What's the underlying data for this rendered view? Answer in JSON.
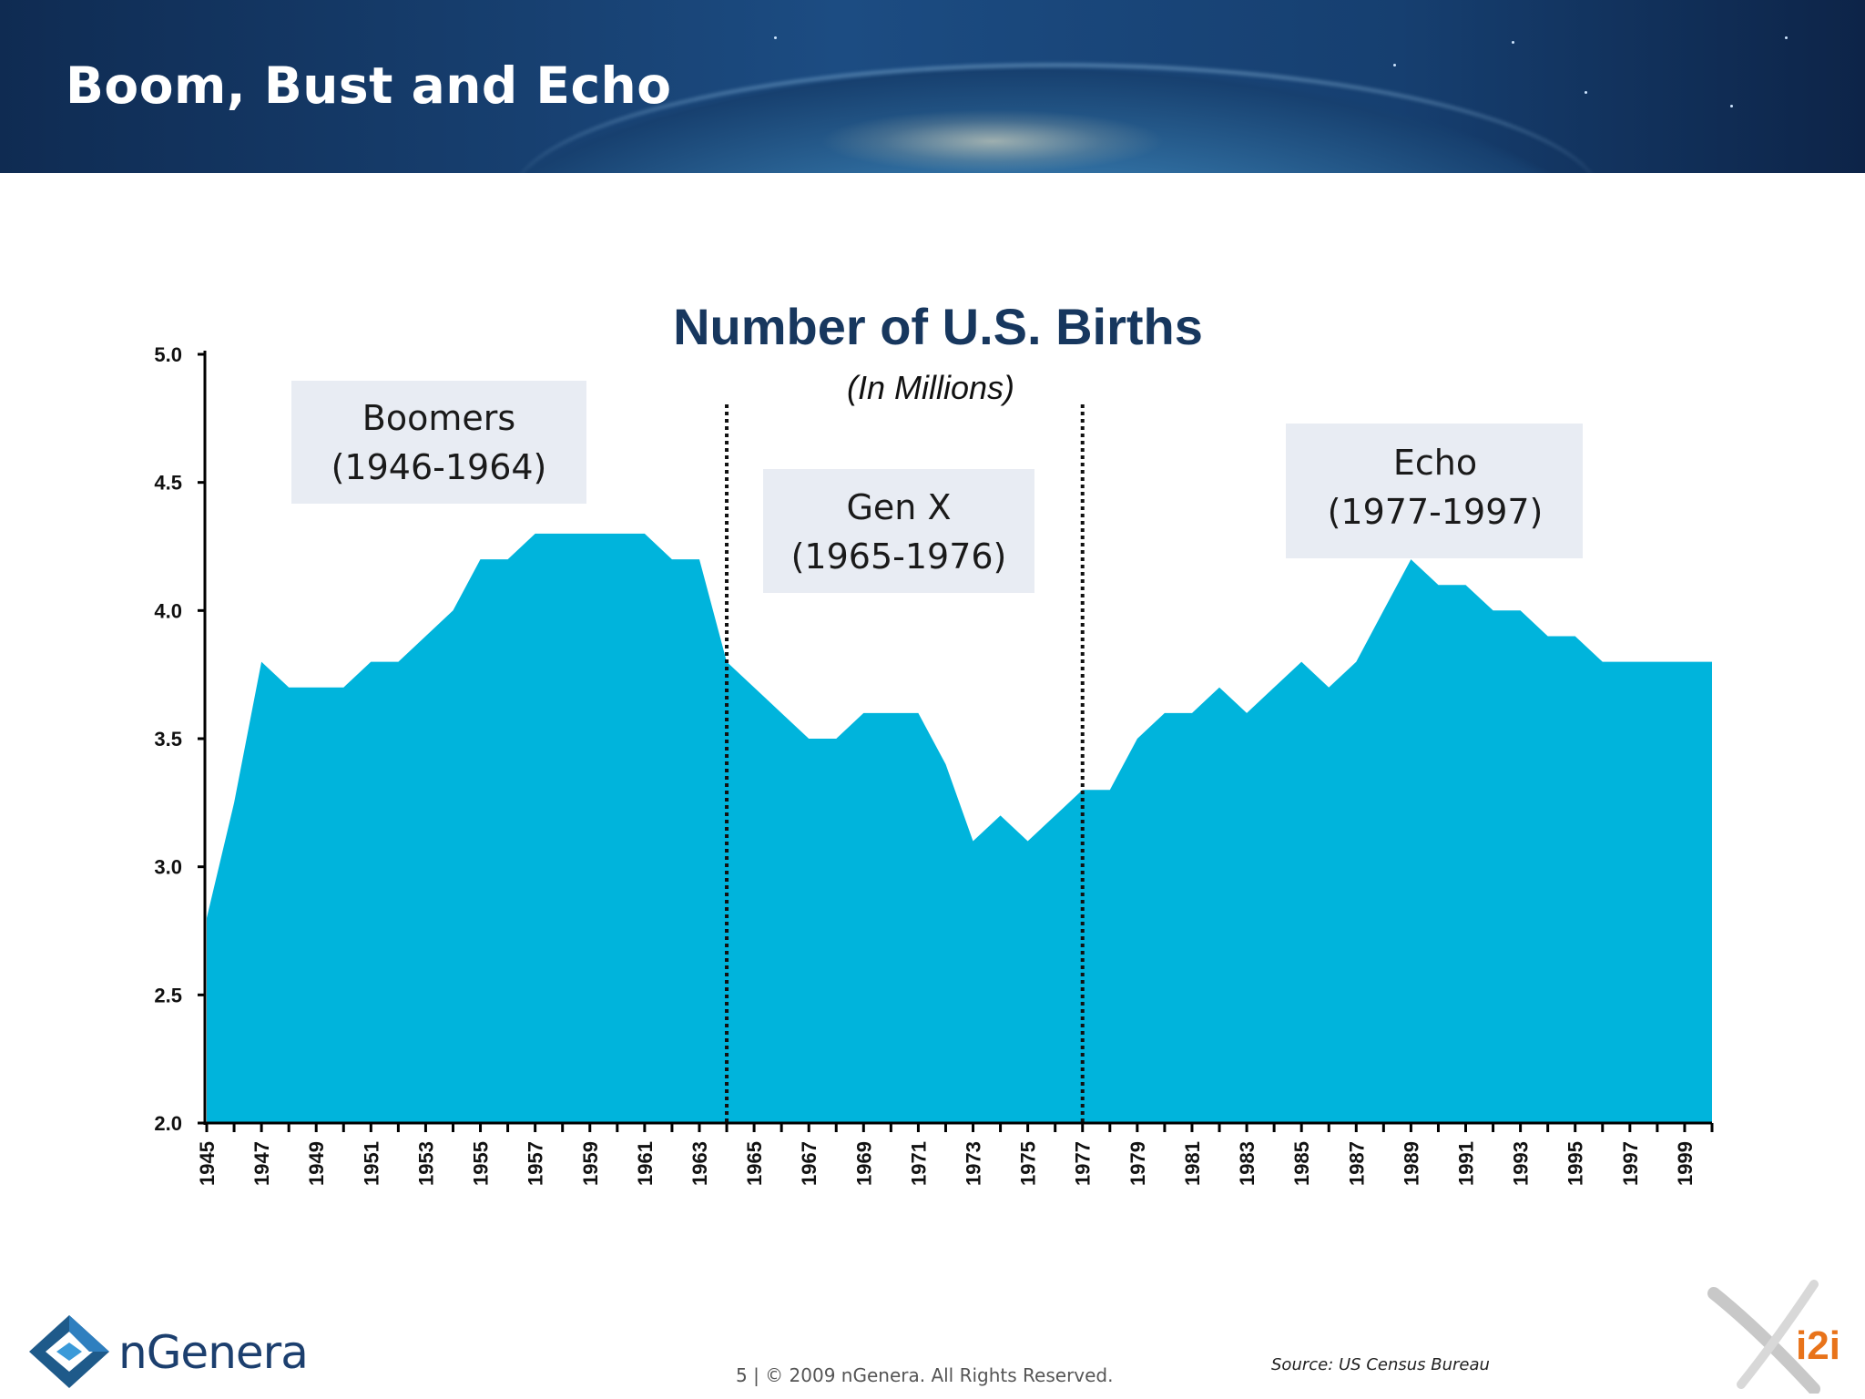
{
  "slide": {
    "title": "Boom, Bust and Echo"
  },
  "chart_data": {
    "type": "area",
    "title": "Number of U.S. Births",
    "subtitle": "(In Millions)",
    "xlabel": "",
    "ylabel": "",
    "x": [
      1945,
      1946,
      1947,
      1948,
      1949,
      1950,
      1951,
      1952,
      1953,
      1954,
      1955,
      1956,
      1957,
      1958,
      1959,
      1960,
      1961,
      1962,
      1963,
      1964,
      1965,
      1966,
      1967,
      1968,
      1969,
      1970,
      1971,
      1972,
      1973,
      1974,
      1975,
      1976,
      1977,
      1978,
      1979,
      1980,
      1981,
      1982,
      1983,
      1984,
      1985,
      1986,
      1987,
      1988,
      1989,
      1990,
      1991,
      1992,
      1993,
      1994,
      1995,
      1996,
      1997,
      1998,
      1999,
      2000
    ],
    "values": [
      2.8,
      3.25,
      3.8,
      3.7,
      3.7,
      3.7,
      3.8,
      3.8,
      3.9,
      4.0,
      4.2,
      4.2,
      4.3,
      4.3,
      4.3,
      4.3,
      4.3,
      4.2,
      4.2,
      3.8,
      3.7,
      3.6,
      3.5,
      3.5,
      3.6,
      3.6,
      3.6,
      3.4,
      3.1,
      3.2,
      3.1,
      3.2,
      3.3,
      3.3,
      3.5,
      3.6,
      3.6,
      3.7,
      3.6,
      3.7,
      3.8,
      3.7,
      3.8,
      4.0,
      4.2,
      4.1,
      4.1,
      4.0,
      4.0,
      3.9,
      3.9,
      3.8,
      3.8,
      3.8,
      3.8,
      3.8
    ],
    "x_tick_labels": [
      "1945",
      "1947",
      "1949",
      "1951",
      "1953",
      "1955",
      "1957",
      "1959",
      "1961",
      "1963",
      "1965",
      "1967",
      "1969",
      "1971",
      "1973",
      "1975",
      "1977",
      "1979",
      "1981",
      "1983",
      "1985",
      "1987",
      "1989",
      "1991",
      "1993",
      "1995",
      "1997",
      "1999"
    ],
    "y_tick_labels": [
      "5.0",
      "4.5",
      "4.0",
      "3.5",
      "3.0",
      "2.5",
      "2.0"
    ],
    "ylim": [
      2.0,
      5.0
    ],
    "xlim": [
      1945,
      2000
    ],
    "dividers": [
      1964,
      1977
    ],
    "grid": false,
    "legend": "none",
    "fill_color": "#00b4dc",
    "title_color": "#17375e",
    "annotations": [
      {
        "line1": "Boomers",
        "line2": "(1946-1964)"
      },
      {
        "line1": "Gen X",
        "line2": "(1965-1976)"
      },
      {
        "line1": "Echo",
        "line2": "(1977-1997)"
      }
    ]
  },
  "footer": {
    "copyright": "5 | © 2009 nGenera. All Rights Reserved.",
    "source": "Source: US Census Bureau",
    "brand": "nGenera",
    "partner_logo": "i2i"
  }
}
